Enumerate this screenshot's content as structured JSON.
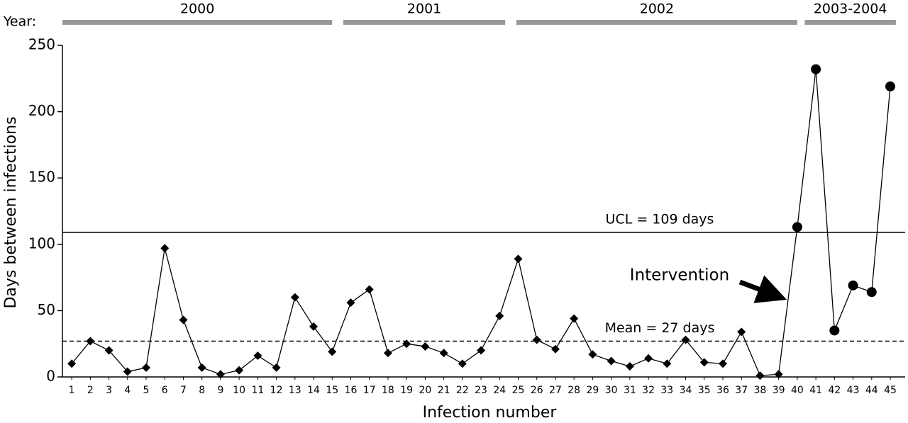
{
  "chart_data": {
    "type": "line",
    "x_label": "Infection number",
    "y_label": "Days between infections",
    "year_label": "Year:",
    "year_bands": [
      {
        "label": "2000",
        "from": 0.5,
        "to": 15
      },
      {
        "label": "2001",
        "from": 15.6,
        "to": 24.3
      },
      {
        "label": "2002",
        "from": 24.9,
        "to": 40
      },
      {
        "label": "2003-2004",
        "from": 40.4,
        "to": 45.3
      }
    ],
    "series": [
      {
        "marker": "diamond",
        "color": "#000000",
        "x": [
          1,
          2,
          3,
          4,
          5,
          6,
          7,
          8,
          9,
          10,
          11,
          12,
          13,
          14,
          15,
          16,
          17,
          18,
          19,
          20,
          21,
          22,
          23,
          24,
          25,
          26,
          27,
          28,
          29,
          30,
          31,
          32,
          33,
          34,
          35,
          36,
          37,
          38,
          39
        ],
        "values": [
          10,
          27,
          20,
          4,
          7,
          97,
          43,
          7,
          2,
          5,
          16,
          7,
          60,
          38,
          19,
          56,
          66,
          18,
          25,
          23,
          18,
          10,
          20,
          46,
          89,
          28,
          21,
          44,
          17,
          12,
          8,
          14,
          10,
          28,
          11,
          10,
          34,
          1,
          2
        ]
      },
      {
        "marker": "circle",
        "color": "#000000",
        "x": [
          40,
          41,
          42,
          43,
          44,
          45
        ],
        "values": [
          113,
          232,
          35,
          69,
          64,
          219
        ]
      }
    ],
    "reference_lines": [
      {
        "value": 109,
        "label": "UCL = 109 days",
        "style": "solid"
      },
      {
        "value": 27,
        "label": "Mean = 27 days",
        "style": "dashed"
      }
    ],
    "annotations": [
      {
        "text": "Intervention"
      }
    ],
    "xlim": [
      0.5,
      45.8
    ],
    "xticks": [
      1,
      2,
      3,
      4,
      5,
      6,
      7,
      8,
      9,
      10,
      11,
      12,
      13,
      14,
      15,
      16,
      17,
      18,
      19,
      20,
      21,
      22,
      23,
      24,
      25,
      26,
      27,
      28,
      29,
      30,
      31,
      32,
      33,
      34,
      35,
      36,
      37,
      38,
      39,
      40,
      41,
      42,
      43,
      44,
      45
    ],
    "ylim": [
      0,
      250
    ],
    "yticks": [
      0,
      50,
      100,
      150,
      200,
      250
    ]
  }
}
